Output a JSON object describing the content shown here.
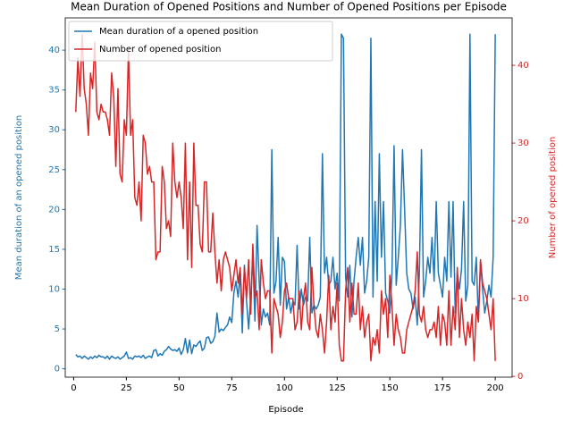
{
  "chart_data": {
    "type": "line",
    "title": "Mean Duration of Opened Positions and Number of Opened Positions per Episode",
    "x_label": "Episode",
    "y_label": "Mean duration of an opened position",
    "y2_label": "Number of opened position",
    "x": [
      1,
      2,
      3,
      4,
      5,
      6,
      7,
      8,
      9,
      10,
      11,
      12,
      13,
      14,
      15,
      16,
      17,
      18,
      19,
      20,
      21,
      22,
      23,
      24,
      25,
      26,
      27,
      28,
      29,
      30,
      31,
      32,
      33,
      34,
      35,
      36,
      37,
      38,
      39,
      40,
      41,
      42,
      43,
      44,
      45,
      46,
      47,
      48,
      49,
      50,
      51,
      52,
      53,
      54,
      55,
      56,
      57,
      58,
      59,
      60,
      61,
      62,
      63,
      64,
      65,
      66,
      67,
      68,
      69,
      70,
      71,
      72,
      73,
      74,
      75,
      76,
      77,
      78,
      79,
      80,
      81,
      82,
      83,
      84,
      85,
      86,
      87,
      88,
      89,
      90,
      91,
      92,
      93,
      94,
      95,
      96,
      97,
      98,
      99,
      100,
      101,
      102,
      103,
      104,
      105,
      106,
      107,
      108,
      109,
      110,
      111,
      112,
      113,
      114,
      115,
      116,
      117,
      118,
      119,
      120,
      121,
      122,
      123,
      124,
      125,
      126,
      127,
      128,
      129,
      130,
      131,
      132,
      133,
      134,
      135,
      136,
      137,
      138,
      139,
      140,
      141,
      142,
      143,
      144,
      145,
      146,
      147,
      148,
      149,
      150,
      151,
      152,
      153,
      154,
      155,
      156,
      157,
      158,
      159,
      160,
      161,
      162,
      163,
      164,
      165,
      166,
      167,
      168,
      169,
      170,
      171,
      172,
      173,
      174,
      175,
      176,
      177,
      178,
      179,
      180,
      181,
      182,
      183,
      184,
      185,
      186,
      187,
      188,
      189,
      190,
      191,
      192,
      193,
      194,
      195,
      196,
      197,
      198,
      199,
      200
    ],
    "series": [
      {
        "name": "Mean duration of a opened position",
        "color": "#1f77b4",
        "axis": "y",
        "values": [
          1.8,
          1.5,
          1.6,
          1.3,
          1.6,
          1.4,
          1.2,
          1.5,
          1.3,
          1.6,
          1.4,
          1.7,
          1.5,
          1.5,
          1.3,
          1.6,
          1.2,
          1.6,
          1.4,
          1.3,
          1.5,
          1.2,
          1.4,
          1.6,
          2.1,
          1.3,
          1.4,
          1.2,
          1.6,
          1.5,
          1.6,
          1.4,
          1.7,
          1.3,
          1.5,
          1.6,
          1.4,
          2.3,
          2.4,
          1.6,
          1.9,
          1.7,
          2.2,
          2.4,
          2.8,
          2.5,
          2.3,
          2.4,
          2.2,
          2.6,
          1.8,
          2.4,
          3.8,
          2.0,
          3.6,
          1.9,
          3.0,
          2.8,
          3.2,
          3.5,
          2.3,
          2.6,
          3.9,
          4.0,
          3.2,
          3.4,
          4.1,
          7.0,
          4.6,
          5.0,
          4.8,
          5.2,
          5.5,
          6.5,
          5.8,
          9.5,
          11.0,
          9.0,
          12.0,
          4.5,
          13.0,
          8.5,
          5.0,
          9.0,
          14.0,
          6.0,
          18.0,
          11.0,
          5.5,
          7.5,
          6.5,
          7.0,
          5.5,
          27.5,
          9.5,
          11.0,
          16.5,
          8.0,
          14.0,
          13.5,
          7.5,
          9.0,
          7.0,
          8.5,
          8.0,
          15.5,
          7.5,
          10.0,
          8.0,
          9.0,
          8.5,
          16.5,
          7.0,
          8.0,
          7.5,
          8.0,
          9.0,
          27.0,
          12.0,
          14.0,
          10.5,
          11.0,
          14.0,
          10.0,
          12.0,
          8.5,
          42.0,
          41.5,
          11.5,
          9.0,
          13.0,
          6.5,
          11.0,
          14.0,
          16.5,
          13.0,
          16.5,
          9.5,
          11.0,
          14.0,
          41.5,
          9.0,
          21.0,
          11.0,
          27.0,
          14.0,
          21.0,
          9.5,
          8.5,
          7.0,
          12.0,
          28.0,
          10.5,
          14.0,
          18.0,
          27.5,
          20.0,
          12.0,
          10.0,
          9.5,
          7.5,
          9.0,
          5.5,
          12.0,
          27.5,
          9.0,
          11.0,
          14.0,
          12.0,
          16.5,
          11.0,
          21.0,
          12.0,
          10.5,
          9.0,
          14.0,
          11.0,
          21.0,
          11.5,
          21.0,
          7.0,
          12.0,
          10.0,
          12.5,
          21.0,
          8.5,
          10.5,
          42.0,
          11.0,
          10.5,
          14.0,
          6.0,
          13.5,
          10.0,
          7.0,
          8.5,
          10.5,
          9.0,
          14.0,
          42.0
        ]
      },
      {
        "name": "Number of opened position",
        "color": "#d62728",
        "axis": "y2",
        "values": [
          34,
          41,
          36,
          44,
          37,
          35,
          31,
          39,
          37,
          43,
          34,
          33,
          35,
          34,
          34,
          33,
          31,
          39,
          36,
          27,
          37,
          26,
          25,
          33,
          31,
          42,
          31,
          33,
          23,
          22,
          25,
          20,
          31,
          30,
          26,
          27,
          25,
          25,
          15,
          16,
          16,
          27,
          25,
          19,
          20,
          18,
          30,
          25,
          23,
          25,
          23,
          19,
          30,
          15,
          25,
          14,
          30,
          22,
          22,
          17,
          16,
          25,
          25,
          16,
          16,
          21,
          16,
          12,
          15,
          11,
          15,
          16,
          15,
          14,
          11,
          13,
          15,
          12,
          14,
          8,
          14,
          10,
          15,
          8,
          17,
          10,
          11,
          6,
          15,
          12,
          10,
          11,
          11,
          3,
          10,
          9,
          8,
          5,
          7,
          11,
          12,
          10,
          10,
          10,
          6,
          7,
          11,
          6,
          10,
          12,
          7,
          6,
          14,
          9,
          6,
          5,
          8,
          6,
          3,
          7,
          13,
          6,
          9,
          7,
          12,
          4,
          2,
          2,
          11,
          14,
          7,
          12,
          8,
          8,
          12,
          6,
          9,
          5,
          7,
          8,
          2,
          5,
          4,
          6,
          3,
          11,
          8,
          10,
          5,
          13,
          9,
          4,
          8,
          6,
          5,
          3,
          3,
          6,
          7,
          8,
          9,
          11,
          16,
          8,
          7,
          9,
          6,
          5,
          6,
          6,
          7,
          5,
          9,
          4,
          8,
          7,
          4,
          11,
          4,
          9,
          6,
          14,
          5,
          10,
          6,
          4,
          7,
          5,
          8,
          2,
          9,
          7,
          15,
          12,
          11,
          10,
          8,
          6,
          10,
          2
        ]
      }
    ],
    "xlim": [
      -4,
      208
    ],
    "xticks": [
      0,
      25,
      50,
      75,
      100,
      125,
      150,
      175,
      200
    ],
    "ylim": [
      -1.05,
      44.05
    ],
    "yticks": [
      0,
      5,
      10,
      15,
      20,
      25,
      30,
      35,
      40
    ],
    "y2lim": [
      -0.1,
      46.1
    ],
    "y2ticks": [
      0,
      10,
      20,
      30,
      40
    ],
    "grid": false,
    "legend": "upper left"
  }
}
